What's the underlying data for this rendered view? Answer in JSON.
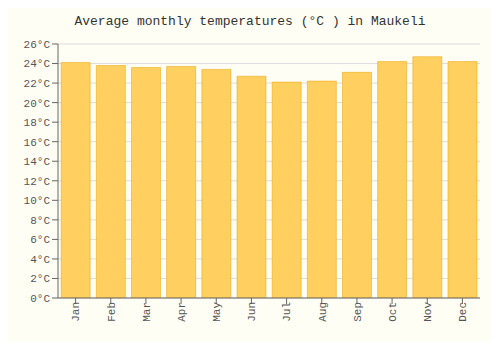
{
  "chart_data": {
    "type": "bar",
    "title": "Average monthly temperatures (°C ) in Maukeli",
    "categories": [
      "Jan",
      "Feb",
      "Mar",
      "Apr",
      "May",
      "Jun",
      "Jul",
      "Aug",
      "Sep",
      "Oct",
      "Nov",
      "Dec"
    ],
    "values": [
      24.1,
      23.8,
      23.6,
      23.7,
      23.4,
      22.7,
      22.1,
      22.2,
      23.1,
      24.2,
      24.7,
      24.2
    ],
    "color": "#FFD060",
    "ylim": [
      0,
      26
    ],
    "yticks": [
      {
        "value": 0,
        "label": "0°C"
      },
      {
        "value": 2,
        "label": "2°C"
      },
      {
        "value": 4,
        "label": "4°C"
      },
      {
        "value": 6,
        "label": "6°C"
      },
      {
        "value": 8,
        "label": "8°C"
      },
      {
        "value": 10,
        "label": "10°C"
      },
      {
        "value": 12,
        "label": "12°C"
      },
      {
        "value": 14,
        "label": "14°C"
      },
      {
        "value": 16,
        "label": "16°C"
      },
      {
        "value": 18,
        "label": "18°C"
      },
      {
        "value": 20,
        "label": "20°C"
      },
      {
        "value": 22,
        "label": "22°C"
      },
      {
        "value": 24,
        "label": "24°C"
      },
      {
        "value": 26,
        "label": "26°C"
      }
    ],
    "grid": true
  }
}
